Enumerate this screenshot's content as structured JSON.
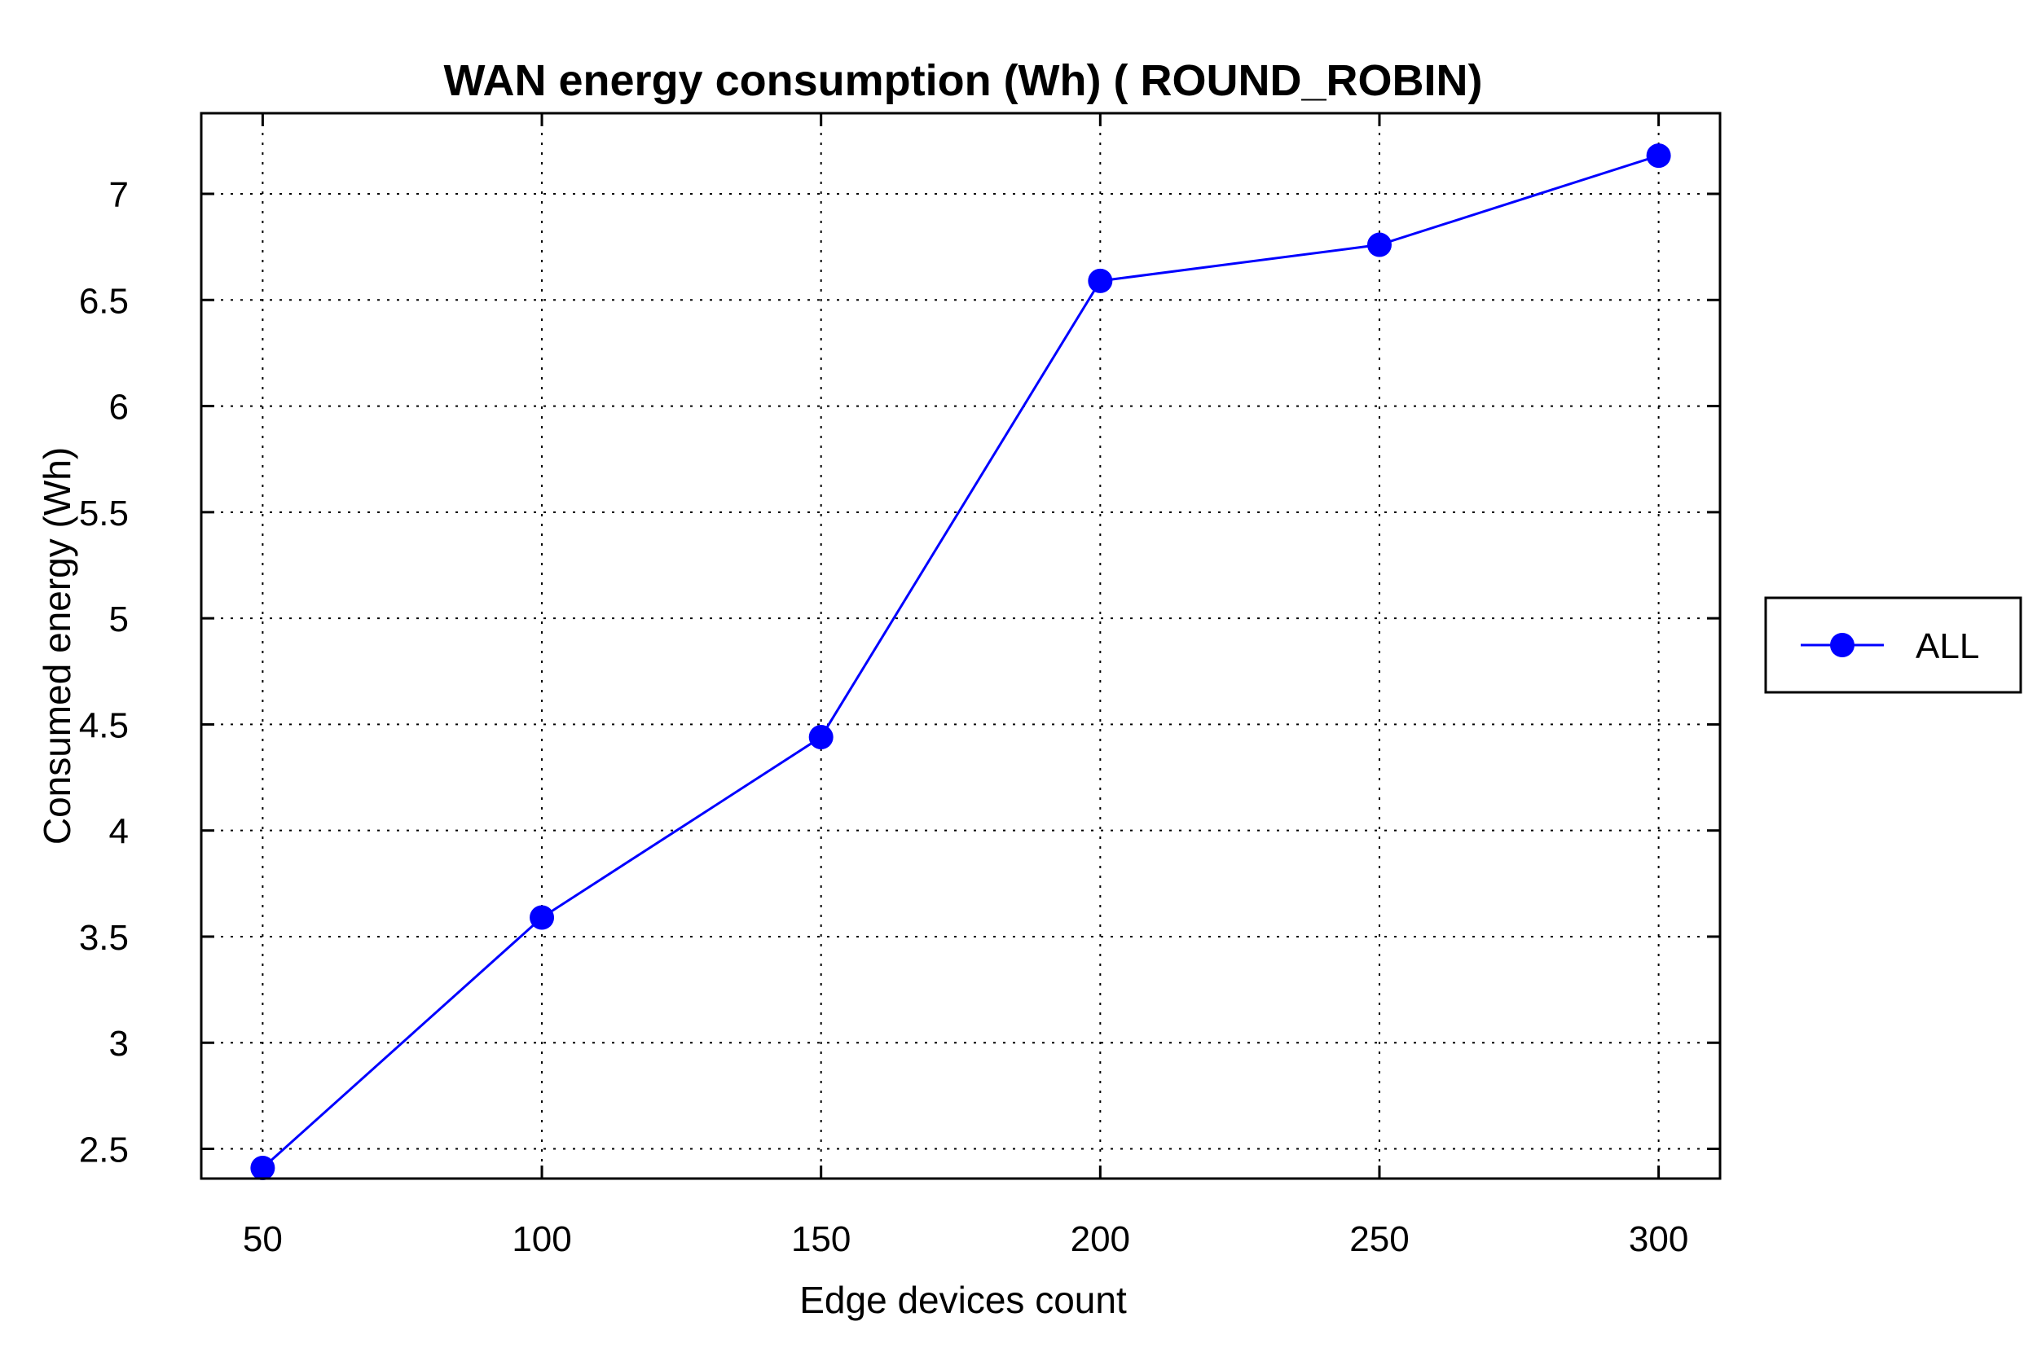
{
  "chart_data": {
    "type": "line",
    "title": "WAN energy consumption (Wh) ( ROUND_ROBIN)",
    "xlabel": "Edge devices count",
    "ylabel": "Consumed energy (Wh)",
    "x": [
      50,
      100,
      150,
      200,
      250,
      300
    ],
    "xticks": [
      "50",
      "100",
      "150",
      "200",
      "250",
      "300"
    ],
    "yticks": [
      "2.5",
      "3",
      "3.5",
      "4",
      "4.5",
      "5",
      "5.5",
      "6",
      "6.5",
      "7"
    ],
    "xlim": [
      39,
      311
    ],
    "ylim": [
      2.36,
      7.38
    ],
    "grid": true,
    "legend_position": "right",
    "series": [
      {
        "name": "ALL",
        "color": "#0000ff",
        "marker": "circle",
        "values": [
          2.41,
          3.59,
          4.44,
          6.59,
          6.76,
          7.18
        ]
      }
    ]
  }
}
